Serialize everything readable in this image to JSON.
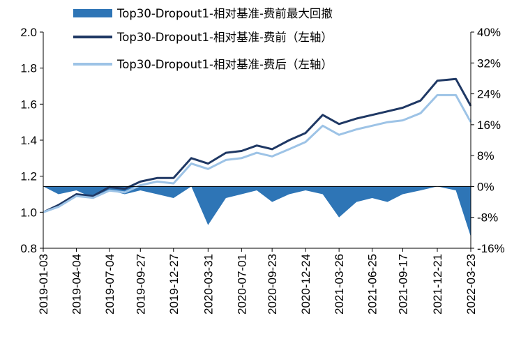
{
  "chart_data": {
    "type": "line",
    "x": [
      "2019-01-03",
      "2019-02-14",
      "2019-04-04",
      "2019-05-20",
      "2019-07-04",
      "2019-08-15",
      "2019-09-27",
      "2019-11-12",
      "2019-12-27",
      "2020-02-14",
      "2020-03-31",
      "2020-05-19",
      "2020-07-01",
      "2020-08-12",
      "2020-09-23",
      "2020-11-09",
      "2020-12-24",
      "2021-02-09",
      "2021-03-26",
      "2021-05-13",
      "2021-06-25",
      "2021-08-06",
      "2021-09-17",
      "2021-11-05",
      "2021-12-21",
      "2022-02-10",
      "2022-03-23"
    ],
    "x_tick_labels": [
      "2019-01-03",
      "2019-04-04",
      "2019-07-04",
      "2019-09-27",
      "2019-12-27",
      "2020-03-31",
      "2020-07-01",
      "2020-09-23",
      "2020-12-24",
      "2021-03-26",
      "2021-06-25",
      "2021-09-17",
      "2021-12-21",
      "2022-03-23"
    ],
    "series": [
      {
        "name": "Top30-Dropout1-相对基准-费前（左轴）",
        "color": "#1f3864",
        "axis": "left",
        "values": [
          1.0,
          1.04,
          1.1,
          1.09,
          1.14,
          1.13,
          1.17,
          1.19,
          1.19,
          1.3,
          1.27,
          1.33,
          1.34,
          1.37,
          1.35,
          1.4,
          1.44,
          1.54,
          1.49,
          1.52,
          1.54,
          1.56,
          1.58,
          1.62,
          1.73,
          1.74,
          1.59
        ]
      },
      {
        "name": "Top30-Dropout1-相对基准-费后（左轴）",
        "color": "#9dc3e6",
        "axis": "left",
        "values": [
          1.0,
          1.03,
          1.09,
          1.08,
          1.12,
          1.11,
          1.15,
          1.17,
          1.16,
          1.27,
          1.24,
          1.29,
          1.3,
          1.33,
          1.31,
          1.35,
          1.39,
          1.48,
          1.43,
          1.46,
          1.48,
          1.5,
          1.51,
          1.55,
          1.65,
          1.65,
          1.5
        ]
      },
      {
        "name": "Top30-Dropout1-相对基准-费前最大回撤",
        "color": "#2e75b6",
        "axis": "right",
        "type": "area",
        "values": [
          0,
          -2,
          -1,
          -3,
          -1,
          -2,
          -1,
          -2,
          -3,
          0,
          -10,
          -3,
          -2,
          -1,
          -4,
          -2,
          -1,
          -2,
          -8,
          -4,
          -3,
          -4,
          -2,
          -1,
          0,
          -1,
          -13
        ]
      }
    ],
    "y_left": {
      "ylim": [
        0.8,
        2.0
      ],
      "ticks": [
        "0.8",
        "1.0",
        "1.2",
        "1.4",
        "1.6",
        "1.8",
        "2.0"
      ]
    },
    "y_right": {
      "ylim": [
        -16,
        40
      ],
      "ticks": [
        "-16%",
        "-8%",
        "0%",
        "8%",
        "16%",
        "24%",
        "32%",
        "40%"
      ]
    },
    "legend_placement": "top",
    "grid": false
  }
}
